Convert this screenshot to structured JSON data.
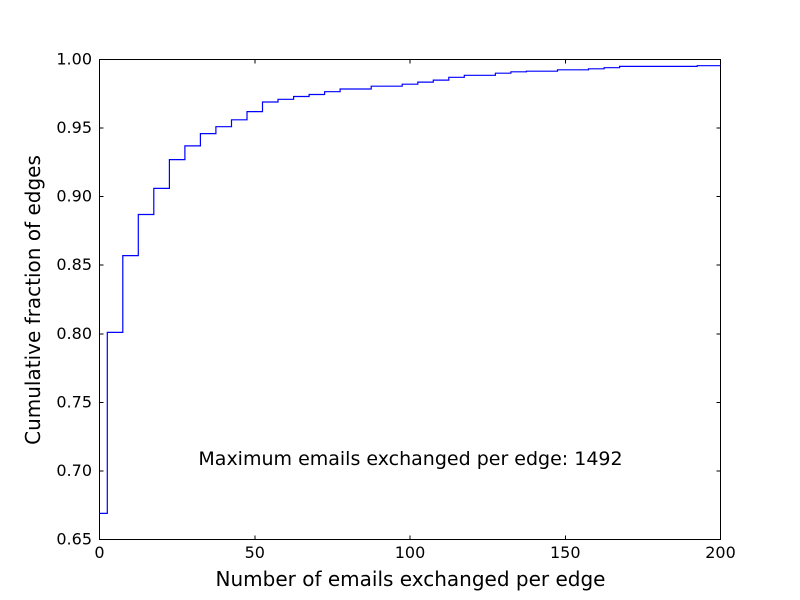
{
  "figure": {
    "background": "#ffffff"
  },
  "chart_data": {
    "type": "step",
    "title": "",
    "xlabel": "Number of emails exchanged per edge",
    "ylabel": "Cumulative fraction of edges",
    "annotation": {
      "text": "Maximum emails exchanged per edge: 1492"
    },
    "xlim": [
      0,
      200
    ],
    "ylim": [
      0.65,
      1.0
    ],
    "xticks": [
      0,
      50,
      100,
      150,
      200
    ],
    "xtick_labels": [
      "0",
      "50",
      "100",
      "150",
      "200"
    ],
    "yticks": [
      0.65,
      0.7,
      0.75,
      0.8,
      0.85,
      0.9,
      0.95,
      1.0
    ],
    "ytick_labels": [
      "0.65",
      "0.70",
      "0.75",
      "0.80",
      "0.85",
      "0.90",
      "0.95",
      "1.00"
    ],
    "grid": false,
    "legend": null,
    "line_color": "#0000ff",
    "frame_color": "#000000",
    "series": [
      {
        "name": "cumulative-fraction-of-edges-cdf",
        "step_x": [
          0,
          2.5,
          7.5,
          12.5,
          17.5,
          22.5,
          27.5,
          32.5,
          37.5,
          42.5,
          47.5,
          52.5,
          57.5,
          62.5,
          67.5,
          72.5,
          77.5,
          87.5,
          97.5,
          102.5,
          107.5,
          112.5,
          117.5,
          127.5,
          132.5,
          137.5,
          147.5,
          157.5,
          162.5,
          167.5,
          192.5
        ],
        "step_y": [
          0.669,
          0.801,
          0.857,
          0.887,
          0.906,
          0.927,
          0.937,
          0.946,
          0.951,
          0.956,
          0.962,
          0.969,
          0.971,
          0.973,
          0.9745,
          0.9765,
          0.9785,
          0.9805,
          0.982,
          0.9835,
          0.985,
          0.987,
          0.9885,
          0.99,
          0.991,
          0.9915,
          0.9925,
          0.9932,
          0.994,
          0.995,
          0.9955
        ],
        "x_end": 200
      }
    ]
  }
}
